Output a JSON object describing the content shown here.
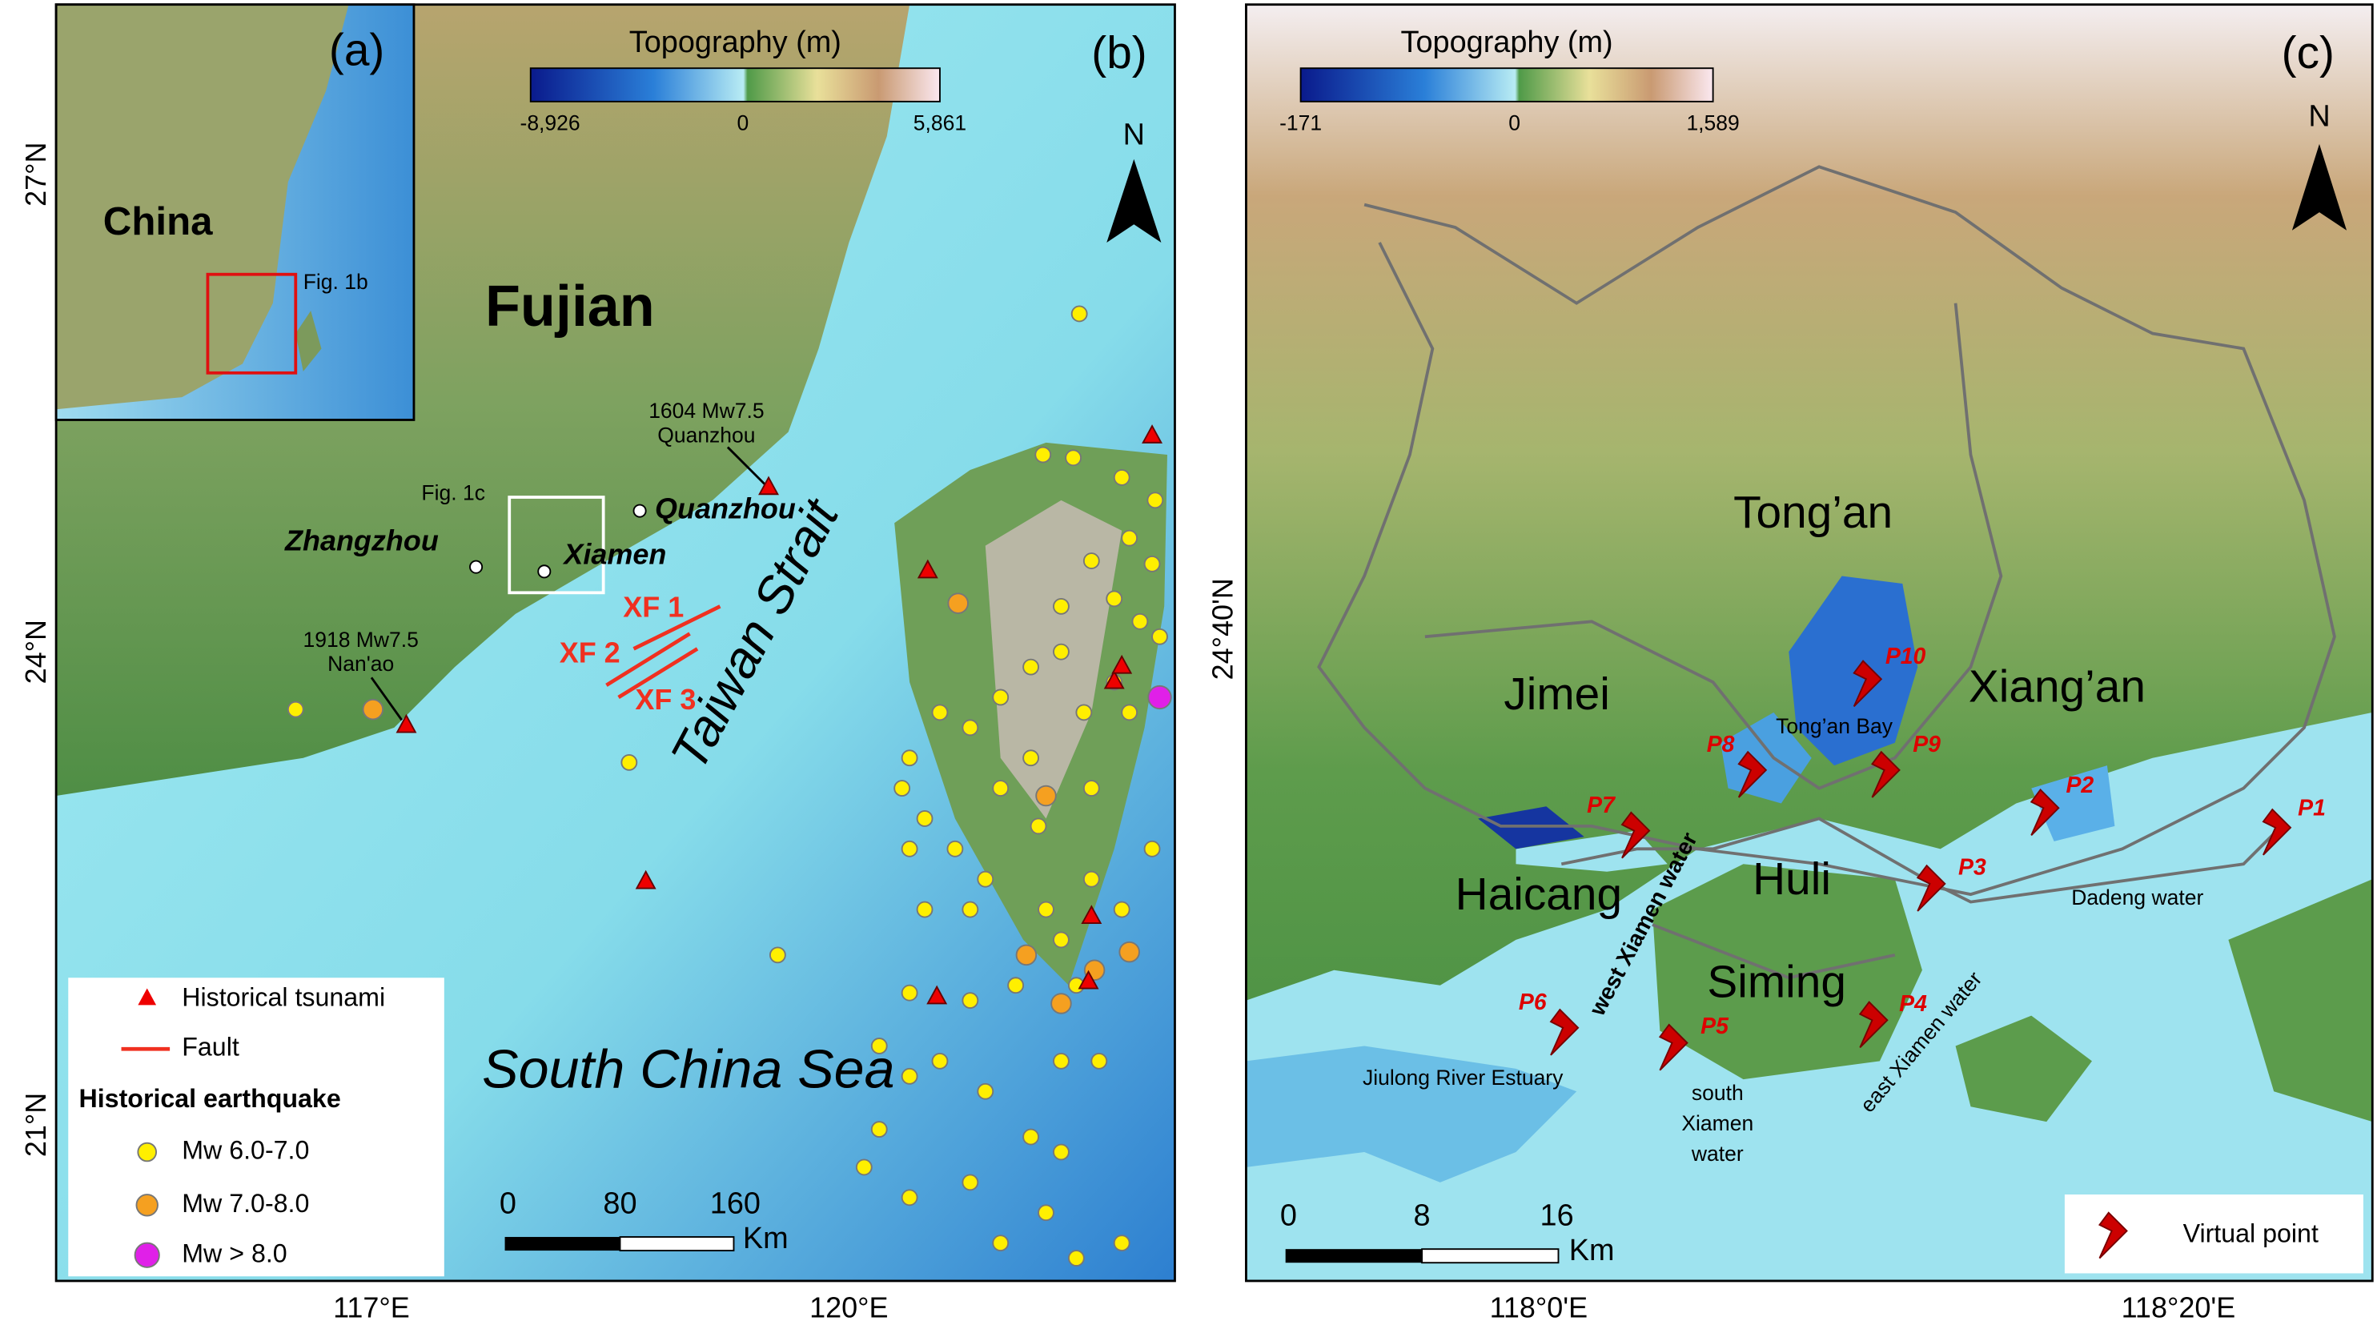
{
  "panel_a": {
    "label": "(a)",
    "country": "China",
    "inset_label": "Fig. 1b"
  },
  "panel_b": {
    "label": "(b)",
    "colorbar": {
      "title": "Topography (m)",
      "min": "-8,926",
      "mid": "0",
      "max": "5,861"
    },
    "north": "N",
    "province": "Fujian",
    "quake_1604": {
      "line1": "1604 Mw7.5",
      "line2": "Quanzhou"
    },
    "cities": {
      "quanzhou": "Quanzhou",
      "zhangzhou": "Zhangzhou",
      "xiamen": "Xiamen"
    },
    "inset_label": "Fig. 1c",
    "faults": [
      "XF 1",
      "XF 2",
      "XF 3"
    ],
    "strait": "Taiwan Strait",
    "quake_1918": {
      "line1": "1918 Mw7.5",
      "line2": "Nan'ao"
    },
    "sea": "South China Sea",
    "legend": {
      "tsunami": "Historical tsunami",
      "fault": "Fault",
      "earthquake_title": "Historical earthquake",
      "mw1": "Mw 6.0-7.0",
      "mw2": "Mw 7.0-8.0",
      "mw3": "Mw > 8.0"
    },
    "scale": {
      "s0": "0",
      "s1": "80",
      "s2": "160",
      "unit": "Km"
    },
    "lat": [
      "27°N",
      "24°N",
      "21°N"
    ],
    "lon": [
      "117°E",
      "120°E"
    ]
  },
  "panel_c": {
    "label": "(c)",
    "colorbar": {
      "title": "Topography (m)",
      "min": "-171",
      "mid": "0",
      "max": "1,589"
    },
    "north": "N",
    "districts": {
      "tongan": "Tong’an",
      "jimei": "Jimei",
      "xiangan": "Xiang’an",
      "haicang": "Haicang",
      "huli": "Huli",
      "siming": "Siming"
    },
    "waters": {
      "bay": "Tong’an Bay",
      "west": "west Xiamen water",
      "dadeng": "Dadeng water",
      "jiulong": "Jiulong River Estuary",
      "south": [
        "south",
        "Xiamen",
        "water"
      ],
      "east": "east Xiamen water"
    },
    "points": [
      "P1",
      "P2",
      "P3",
      "P4",
      "P5",
      "P6",
      "P7",
      "P8",
      "P9",
      "P10"
    ],
    "legend": "Virtual point",
    "scale": {
      "s0": "0",
      "s1": "8",
      "s2": "16",
      "unit": "Km"
    },
    "lat": [
      "24°40'N"
    ],
    "lon": [
      "118°0'E",
      "118°20'E"
    ]
  }
}
